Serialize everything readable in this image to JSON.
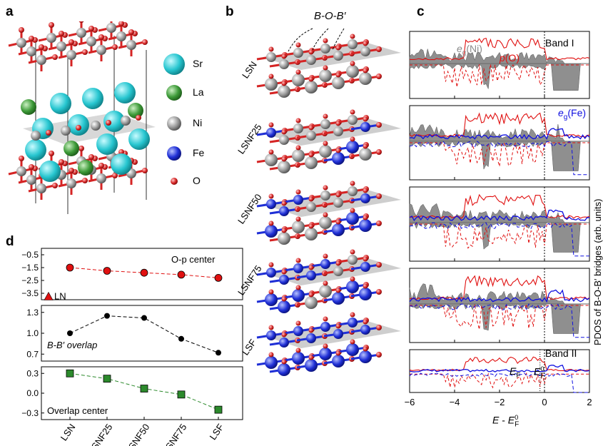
{
  "panels": {
    "a": "a",
    "b": "b",
    "c": "c",
    "d": "d"
  },
  "species": [
    {
      "label": "Sr",
      "color": "#27c6d0"
    },
    {
      "label": "La",
      "color": "#3d9a38"
    },
    {
      "label": "Ni",
      "color": "#9a9a9a"
    },
    {
      "label": "Fe",
      "color": "#1f2fd6"
    },
    {
      "label": "O",
      "color": "#d52424"
    }
  ],
  "panel_b": {
    "bridge_label": "B-O-B′",
    "slabs": [
      "LSN",
      "LSNF25",
      "LSNF50",
      "LSNF75",
      "LSF"
    ]
  },
  "panel_c": {
    "xlabel": "E - E_F^0",
    "ylabel": "PDOS of B-O-B′ bridges (arb. units)",
    "xticks": [
      "−6",
      "−4",
      "−2",
      "0",
      "2"
    ],
    "labels": {
      "eg_ni": "e_g(Ni)",
      "p_o": "p(O)",
      "band1": "Band I",
      "eg_fe": "e_g(Fe)",
      "band2": "Band II",
      "ef": "E_F",
      "ef0": "E_F^0"
    }
  },
  "chart_data": [
    {
      "type": "line",
      "title": "O-p center",
      "categories": [
        "LSN",
        "LSNF25",
        "LSNF50",
        "LSNF75",
        "LSF"
      ],
      "series": [
        {
          "name": "O-p center",
          "values": [
            -1.5,
            -1.75,
            -1.9,
            -2.05,
            -2.3
          ]
        }
      ],
      "extra_point": {
        "label": "LN",
        "value": -3.75
      },
      "yticks": [
        "−0.5",
        "−1.5",
        "−2.5",
        "−3.5"
      ],
      "ylim": [
        -4.0,
        0.0
      ]
    },
    {
      "type": "line",
      "title": "B-B′ overlap",
      "categories": [
        "LSN",
        "LSNF25",
        "LSNF50",
        "LSNF75",
        "LSF"
      ],
      "series": [
        {
          "name": "B-B′ overlap",
          "values": [
            1.0,
            1.25,
            1.22,
            0.92,
            0.72
          ]
        }
      ],
      "yticks": [
        "1.3",
        "1.0",
        "0.7"
      ],
      "ylim": [
        0.6,
        1.4
      ]
    },
    {
      "type": "line",
      "title": "Overlap center",
      "categories": [
        "LSN",
        "LSNF25",
        "LSNF50",
        "LSNF75",
        "LSF"
      ],
      "series": [
        {
          "name": "Overlap center",
          "values": [
            0.3,
            0.22,
            0.07,
            -0.02,
            -0.25
          ]
        }
      ],
      "yticks": [
        "0.3",
        "0.0",
        "−0.3"
      ],
      "ylim": [
        -0.4,
        0.4
      ]
    }
  ]
}
